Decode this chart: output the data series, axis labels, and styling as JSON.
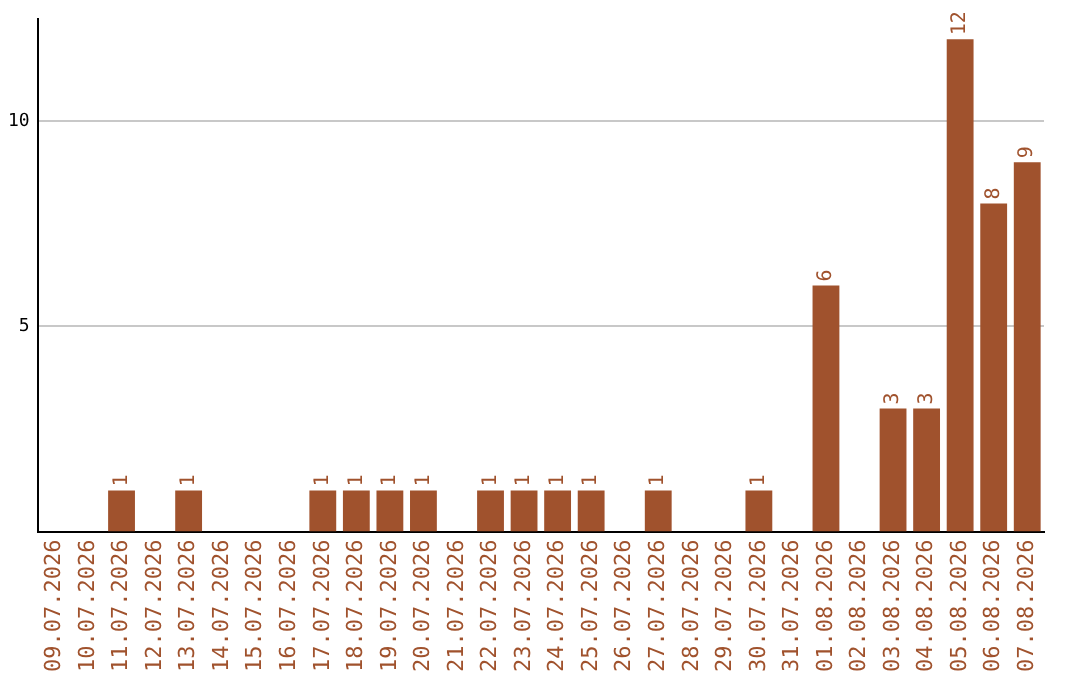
{
  "chart_data": {
    "type": "bar",
    "categories": [
      "09.07.2026",
      "10.07.2026",
      "11.07.2026",
      "12.07.2026",
      "13.07.2026",
      "14.07.2026",
      "15.07.2026",
      "16.07.2026",
      "17.07.2026",
      "18.07.2026",
      "19.07.2026",
      "20.07.2026",
      "21.07.2026",
      "22.07.2026",
      "23.07.2026",
      "24.07.2026",
      "25.07.2026",
      "26.07.2026",
      "27.07.2026",
      "28.07.2026",
      "29.07.2026",
      "30.07.2026",
      "31.07.2026",
      "01.08.2026",
      "02.08.2026",
      "03.08.2026",
      "04.08.2026",
      "05.08.2026",
      "06.08.2026",
      "07.08.2026"
    ],
    "values": [
      0,
      0,
      1,
      0,
      1,
      0,
      0,
      0,
      1,
      1,
      1,
      1,
      0,
      1,
      1,
      1,
      1,
      0,
      1,
      0,
      0,
      1,
      0,
      6,
      0,
      3,
      3,
      12,
      8,
      9
    ],
    "value_labels": [
      null,
      null,
      "1",
      null,
      "1",
      null,
      null,
      null,
      "1",
      "1",
      "1",
      "1",
      null,
      "1",
      "1",
      "1",
      "1",
      null,
      "1",
      null,
      null,
      "1",
      null,
      "6",
      null,
      "3",
      "3",
      "12",
      "8",
      "9"
    ],
    "color": "#a0522d",
    "ylim": [
      0,
      12.5
    ],
    "yticks": [
      5,
      10
    ],
    "grid": "y"
  }
}
